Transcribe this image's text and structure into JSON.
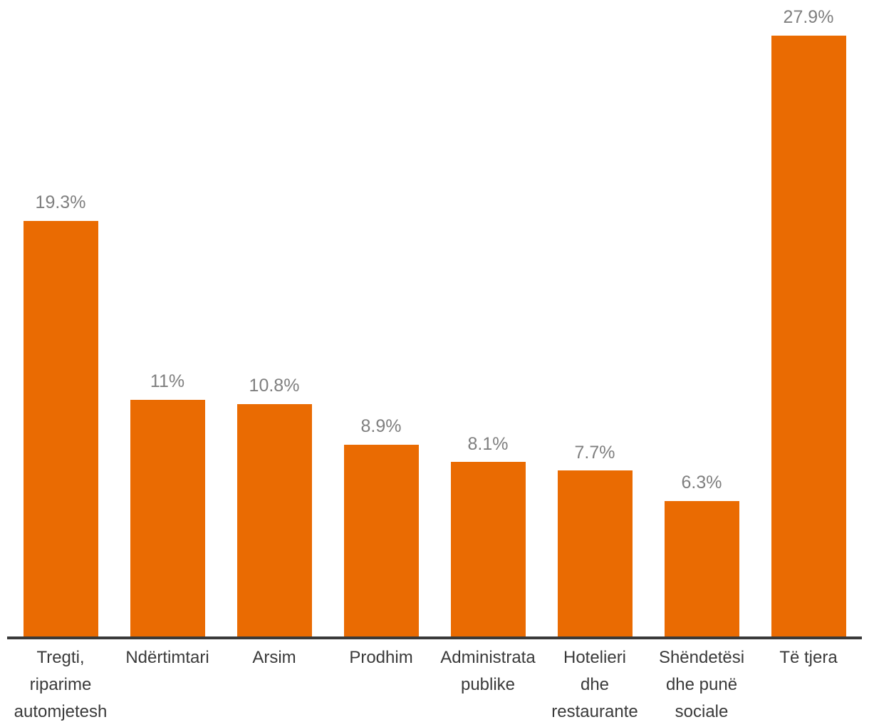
{
  "chart_data": {
    "type": "bar",
    "title": "",
    "xlabel": "",
    "ylabel": "",
    "categories": [
      "Tregti, riparime automjetesh",
      "Ndërtimtari",
      "Arsim",
      "Prodhim",
      "Administrata publike",
      "Hotelieri dhe restaurante",
      "Shëndetësi dhe punë sociale",
      "Të tjera"
    ],
    "values": [
      19.3,
      11,
      10.8,
      8.9,
      8.1,
      7.7,
      6.3,
      27.9
    ],
    "value_labels": [
      "19.3%",
      "11%",
      "10.8%",
      "8.9%",
      "8.1%",
      "7.7%",
      "6.3%",
      "27.9%"
    ],
    "category_label_lines": [
      [
        "Tregti,",
        "riparime",
        "automjetesh"
      ],
      [
        "Ndërtimtari"
      ],
      [
        "Arsim"
      ],
      [
        "Prodhim"
      ],
      [
        "Administrata",
        "publike"
      ],
      [
        "Hotelieri",
        "dhe",
        "restaurante"
      ],
      [
        "Shëndetësi",
        "dhe punë",
        "sociale"
      ],
      [
        "Të tjera"
      ]
    ],
    "ylim": [
      0,
      29.5
    ],
    "grid": false,
    "legend": false,
    "value_labels_position": "above bars",
    "colors": {
      "bar": "#EA6B02",
      "value_label": "#7F7F7F",
      "category_label": "#3A3A3A",
      "axis_line": "#3A3A3A",
      "background": "#FFFFFF"
    }
  }
}
